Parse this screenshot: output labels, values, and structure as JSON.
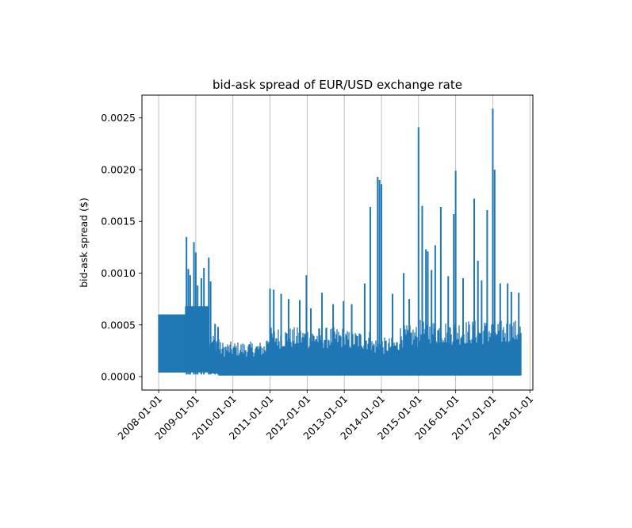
{
  "chart_data": {
    "type": "area",
    "title": "bid-ask spread of EUR/USD exchange rate",
    "xlabel": "",
    "ylabel": "bid-ask spread ($)",
    "grid": "vertical",
    "x_ticks": [
      "2008-01-01",
      "2009-01-01",
      "2010-01-01",
      "2011-01-01",
      "2012-01-01",
      "2013-01-01",
      "2014-01-01",
      "2015-01-01",
      "2016-01-01",
      "2017-01-01",
      "2018-01-01"
    ],
    "y_ticks": [
      "0.0000",
      "0.0005",
      "0.0010",
      "0.0015",
      "0.0020",
      "0.0025"
    ],
    "xlim": [
      2007.55,
      2018.08
    ],
    "ylim": [
      -0.00013,
      0.00272
    ],
    "x_range": [
      2008.0,
      2017.75
    ],
    "color": "#1f77b4",
    "series": [
      {
        "name": "bid-ask spread",
        "segments": [
          {
            "x": [
              2008.0,
              2008.72
            ],
            "low": 4e-05,
            "high": 0.0006
          },
          {
            "x": [
              2008.72,
              2009.35
            ],
            "low": 4e-05,
            "high": 0.00068
          },
          {
            "x": [
              2009.35,
              2009.62
            ],
            "low": 3e-05,
            "high": 0.00042
          },
          {
            "x": [
              2009.62,
              2010.9
            ],
            "low": 1e-05,
            "high": 0.00034
          },
          {
            "x": [
              2010.9,
              2013.0
            ],
            "low": 1e-05,
            "high": 0.00048
          },
          {
            "x": [
              2013.0,
              2013.7
            ],
            "low": 1e-05,
            "high": 0.00045
          },
          {
            "x": [
              2013.7,
              2014.5
            ],
            "low": 1e-05,
            "high": 0.00038
          },
          {
            "x": [
              2014.5,
              2015.0
            ],
            "low": 1e-05,
            "high": 0.0005
          },
          {
            "x": [
              2015.0,
              2017.75
            ],
            "low": 1e-05,
            "high": 0.00055
          }
        ],
        "spikes": [
          {
            "x": 2008.75,
            "y": 0.00135
          },
          {
            "x": 2008.8,
            "y": 0.00104
          },
          {
            "x": 2008.85,
            "y": 0.00098
          },
          {
            "x": 2008.95,
            "y": 0.0013
          },
          {
            "x": 2009.0,
            "y": 0.0012
          },
          {
            "x": 2009.05,
            "y": 0.00088
          },
          {
            "x": 2009.15,
            "y": 0.00095
          },
          {
            "x": 2009.22,
            "y": 0.00105
          },
          {
            "x": 2009.35,
            "y": 0.00115
          },
          {
            "x": 2009.4,
            "y": 0.00092
          },
          {
            "x": 2009.52,
            "y": 0.00051
          },
          {
            "x": 2009.6,
            "y": 0.00048
          },
          {
            "x": 2011.0,
            "y": 0.00085
          },
          {
            "x": 2011.1,
            "y": 0.00084
          },
          {
            "x": 2011.3,
            "y": 0.0008
          },
          {
            "x": 2011.5,
            "y": 0.00075
          },
          {
            "x": 2011.8,
            "y": 0.00074
          },
          {
            "x": 2011.98,
            "y": 0.00098
          },
          {
            "x": 2012.1,
            "y": 0.00066
          },
          {
            "x": 2012.4,
            "y": 0.00081
          },
          {
            "x": 2012.7,
            "y": 0.0007
          },
          {
            "x": 2012.98,
            "y": 0.00073
          },
          {
            "x": 2013.2,
            "y": 0.0007
          },
          {
            "x": 2013.55,
            "y": 0.0009
          },
          {
            "x": 2013.7,
            "y": 0.00164
          },
          {
            "x": 2013.9,
            "y": 0.00193
          },
          {
            "x": 2013.95,
            "y": 0.0019
          },
          {
            "x": 2014.0,
            "y": 0.00186
          },
          {
            "x": 2014.3,
            "y": 0.0008
          },
          {
            "x": 2014.6,
            "y": 0.001
          },
          {
            "x": 2014.75,
            "y": 0.00075
          },
          {
            "x": 2015.0,
            "y": 0.00241
          },
          {
            "x": 2015.1,
            "y": 0.00165
          },
          {
            "x": 2015.2,
            "y": 0.00123
          },
          {
            "x": 2015.25,
            "y": 0.00121
          },
          {
            "x": 2015.35,
            "y": 0.00103
          },
          {
            "x": 2015.45,
            "y": 0.00127
          },
          {
            "x": 2015.6,
            "y": 0.00164
          },
          {
            "x": 2015.8,
            "y": 0.00097
          },
          {
            "x": 2015.95,
            "y": 0.00157
          },
          {
            "x": 2016.0,
            "y": 0.00199
          },
          {
            "x": 2016.2,
            "y": 0.00095
          },
          {
            "x": 2016.5,
            "y": 0.00172
          },
          {
            "x": 2016.6,
            "y": 0.00112
          },
          {
            "x": 2016.7,
            "y": 0.00093
          },
          {
            "x": 2016.85,
            "y": 0.00161
          },
          {
            "x": 2017.0,
            "y": 0.00259
          },
          {
            "x": 2017.05,
            "y": 0.002
          },
          {
            "x": 2017.2,
            "y": 0.0009
          },
          {
            "x": 2017.4,
            "y": 0.0009
          },
          {
            "x": 2017.5,
            "y": 0.00082
          },
          {
            "x": 2017.7,
            "y": 0.00081
          }
        ]
      }
    ]
  }
}
